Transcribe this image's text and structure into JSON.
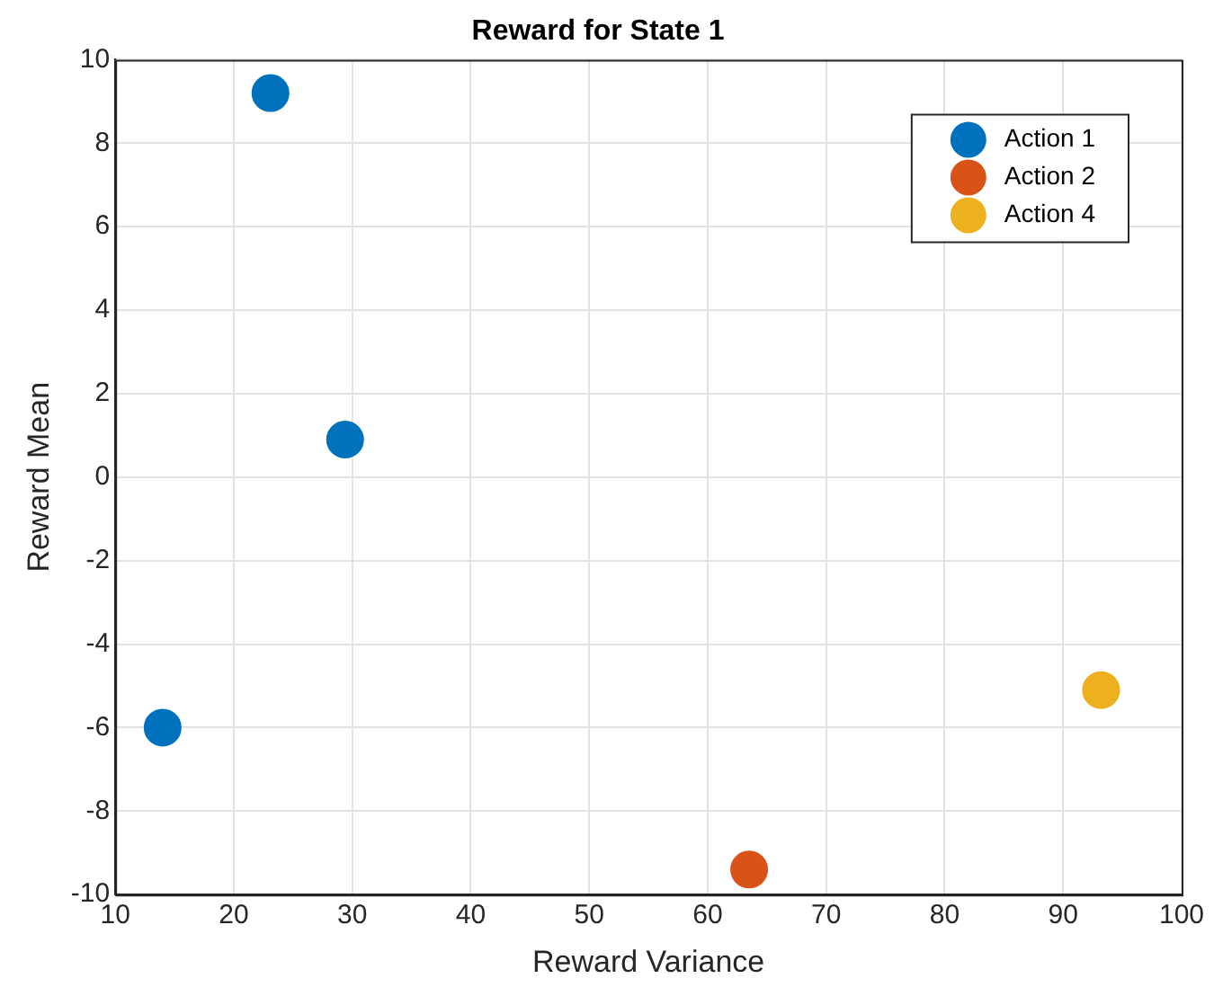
{
  "chart_data": {
    "type": "scatter",
    "title": "Reward for State 1",
    "xlabel": "Reward Variance",
    "ylabel": "Reward Mean",
    "xlim": [
      10,
      100
    ],
    "xticks": [
      10,
      20,
      30,
      40,
      50,
      60,
      70,
      80,
      90,
      100
    ],
    "ylim": [
      -10,
      10
    ],
    "yticks": [
      -10,
      -8,
      -6,
      -4,
      -2,
      0,
      2,
      4,
      6,
      8,
      10
    ],
    "grid": true,
    "legend": "top right",
    "marker": "circle",
    "series": [
      {
        "name": "Action 1",
        "color": "#0072bd",
        "x": [
          23.1,
          29.4,
          14.0
        ],
        "values": [
          9.2,
          0.9,
          -6.0
        ]
      },
      {
        "name": "Action 2",
        "color": "#d95319",
        "x": [
          63.5
        ],
        "values": [
          -9.4
        ]
      },
      {
        "name": "Action 4",
        "color": "#edb120",
        "x": [
          93.2
        ],
        "values": [
          -5.1
        ]
      }
    ]
  }
}
